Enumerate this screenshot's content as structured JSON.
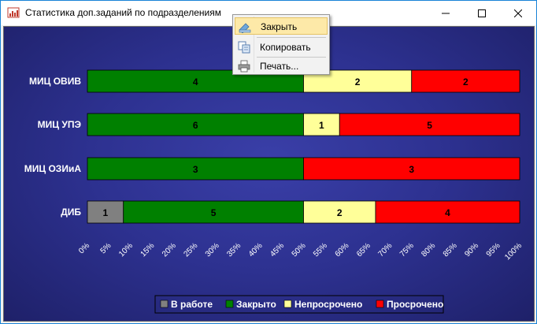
{
  "window": {
    "title": "Статистика доп.заданий по подразделениям",
    "icon": "chart-app-icon",
    "buttons": {
      "minimize": "minimize-icon",
      "maximize": "maximize-icon",
      "close": "close-icon"
    }
  },
  "context_menu": {
    "items": [
      {
        "label": "Закрыть",
        "icon": "close-doc-icon",
        "highlighted": true
      },
      {
        "label": "Копировать",
        "icon": "copy-icon",
        "highlighted": false
      },
      {
        "label": "Печать...",
        "icon": "printer-icon",
        "highlighted": false
      }
    ]
  },
  "colors": {
    "background": "#2d3190",
    "v_rabote": "#808080",
    "zakryto": "#008000",
    "neprosrocheno": "#ffff99",
    "prosrocheno": "#ff0000",
    "axis_text": "#ffffff"
  },
  "chart_data": {
    "type": "bar",
    "orientation": "horizontal",
    "stacked": "percent",
    "categories": [
      "МИЦ ОВИВ",
      "МИЦ УПЭ",
      "МИЦ ОЗИиА",
      "ДИБ"
    ],
    "series": [
      {
        "name": "В работе",
        "color": "#808080",
        "values": [
          0,
          0,
          0,
          1
        ]
      },
      {
        "name": "Закрыто",
        "color": "#008000",
        "values": [
          4,
          6,
          3,
          5
        ]
      },
      {
        "name": "Непросрочено",
        "color": "#ffff99",
        "values": [
          2,
          1,
          0,
          2
        ]
      },
      {
        "name": "Просрочено",
        "color": "#ff0000",
        "values": [
          2,
          5,
          3,
          4
        ]
      }
    ],
    "xlim": [
      0,
      100
    ],
    "x_ticks": [
      "0%",
      "5%",
      "10%",
      "15%",
      "20%",
      "25%",
      "30%",
      "35%",
      "40%",
      "45%",
      "50%",
      "55%",
      "60%",
      "65%",
      "70%",
      "75%",
      "80%",
      "85%",
      "90%",
      "95%",
      "100%"
    ],
    "legend_position": "bottom",
    "grid": false,
    "title": "",
    "xlabel": "",
    "ylabel": ""
  }
}
